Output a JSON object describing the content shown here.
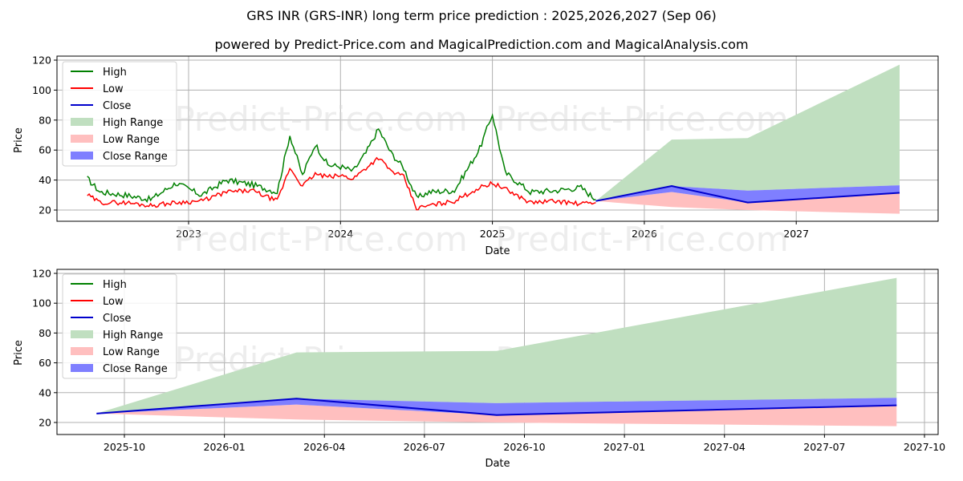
{
  "header": {
    "title": "GRS INR (GRS-INR) long term price prediction : 2025,2026,2027 (Sep 06)",
    "subtitle": "powered by Predict-Price.com and MagicalPrediction.com and MagicalAnalysis.com"
  },
  "watermark": "Predict-Price.com",
  "colors": {
    "high": "#008000",
    "low": "#ff0000",
    "close": "#0000cc",
    "high_range": "#c0dfc0",
    "low_range": "#ffbfbf",
    "close_range": "#7f7fff",
    "grid": "#b0b0b0"
  },
  "legend": {
    "items": [
      {
        "label": "High",
        "type": "line",
        "color": "#008000"
      },
      {
        "label": "Low",
        "type": "line",
        "color": "#ff0000"
      },
      {
        "label": "Close",
        "type": "line",
        "color": "#0000cc"
      },
      {
        "label": "High Range",
        "type": "patch",
        "color": "#c0dfc0"
      },
      {
        "label": "Low Range",
        "type": "patch",
        "color": "#ffbfbf"
      },
      {
        "label": "Close Range",
        "type": "patch",
        "color": "#7f7fff"
      }
    ]
  },
  "top_chart": {
    "xlabel": "Date",
    "ylabel": "Price",
    "yticks": [
      "20",
      "40",
      "60",
      "80",
      "100",
      "120"
    ],
    "xticks": [
      "2023",
      "2024",
      "2025",
      "2026",
      "2027"
    ]
  },
  "bottom_chart": {
    "xlabel": "Date",
    "ylabel": "Price",
    "yticks": [
      "20",
      "40",
      "60",
      "80",
      "100",
      "120"
    ],
    "xticks": [
      "2025-10",
      "2026-01",
      "2026-04",
      "2026-07",
      "2026-10",
      "2027-01",
      "2027-04",
      "2027-07",
      "2027-10"
    ]
  },
  "chart_data": [
    {
      "type": "line",
      "title": "GRS INR (GRS-INR) long term price prediction : 2025,2026,2027 (Sep 06)",
      "subtitle": "powered by Predict-Price.com and MagicalPrediction.com and MagicalAnalysis.com",
      "xlabel": "Date",
      "ylabel": "Price",
      "ylim": [
        12,
        122
      ],
      "xlim": [
        "2022-03",
        "2027-12"
      ],
      "grid": true,
      "legend_position": "upper left",
      "x": [
        "2022-05",
        "2022-06",
        "2022-08",
        "2022-10",
        "2022-12",
        "2023-02",
        "2023-04",
        "2023-06",
        "2023-08",
        "2023-09",
        "2023-10",
        "2023-11",
        "2023-12",
        "2024-01",
        "2024-02",
        "2024-03",
        "2024-04",
        "2024-05",
        "2024-06",
        "2024-07",
        "2024-08",
        "2024-10",
        "2024-12",
        "2025-01",
        "2025-02",
        "2025-04",
        "2025-06",
        "2025-08",
        "2025-09-06"
      ],
      "series": [
        {
          "name": "High",
          "values": [
            41,
            32,
            30,
            27,
            38,
            30,
            40,
            37,
            32,
            70,
            43,
            64,
            50,
            49,
            46,
            58,
            74,
            58,
            48,
            28,
            32,
            33,
            61,
            84,
            45,
            32,
            33,
            35,
            27
          ]
        },
        {
          "name": "Low",
          "values": [
            30,
            25,
            25,
            23,
            25,
            26,
            32,
            33,
            26,
            48,
            36,
            44,
            42,
            43,
            41,
            48,
            55,
            46,
            42,
            21,
            23,
            26,
            35,
            38,
            34,
            25,
            26,
            24,
            25
          ]
        },
        {
          "name": "Close",
          "values": [
            33,
            27,
            27,
            25,
            28,
            28,
            35,
            34,
            28,
            55,
            38,
            48,
            45,
            45,
            43,
            52,
            60,
            50,
            45,
            23,
            26,
            28,
            40,
            43,
            38,
            27,
            28,
            27,
            26
          ]
        }
      ],
      "forecast": {
        "x": [
          "2025-09-06",
          "2026-03-06",
          "2026-09-06",
          "2027-09-06"
        ],
        "close": [
          26,
          36,
          25,
          31.5
        ],
        "high_range_top": [
          26,
          67,
          68,
          117
        ],
        "close_range_top": [
          26,
          36,
          33,
          36.5
        ],
        "close_range_bottom": [
          26,
          32,
          25,
          31.5
        ],
        "low_range_bottom": [
          26,
          22,
          20,
          17.5
        ]
      },
      "xticks": [
        "2023",
        "2024",
        "2025",
        "2026",
        "2027"
      ],
      "yticks": [
        20,
        40,
        60,
        80,
        100,
        120
      ]
    },
    {
      "type": "area",
      "title": "Forecast detail",
      "xlabel": "Date",
      "ylabel": "Price",
      "ylim": [
        12,
        122
      ],
      "grid": true,
      "legend_position": "upper left",
      "x": [
        "2025-09-06",
        "2026-03-06",
        "2026-09-06",
        "2027-09-06"
      ],
      "series": [
        {
          "name": "Close",
          "values": [
            26,
            36,
            25,
            31.5
          ]
        },
        {
          "name": "High Range",
          "values": [
            26,
            67,
            68,
            117
          ]
        },
        {
          "name": "Close Range (upper)",
          "values": [
            26,
            36,
            33,
            36.5
          ]
        },
        {
          "name": "Low Range (lower)",
          "values": [
            26,
            22,
            20,
            17.5
          ]
        }
      ],
      "xticks": [
        "2025-10",
        "2026-01",
        "2026-04",
        "2026-07",
        "2026-10",
        "2027-01",
        "2027-04",
        "2027-07",
        "2027-10"
      ],
      "yticks": [
        20,
        40,
        60,
        80,
        100,
        120
      ]
    }
  ]
}
